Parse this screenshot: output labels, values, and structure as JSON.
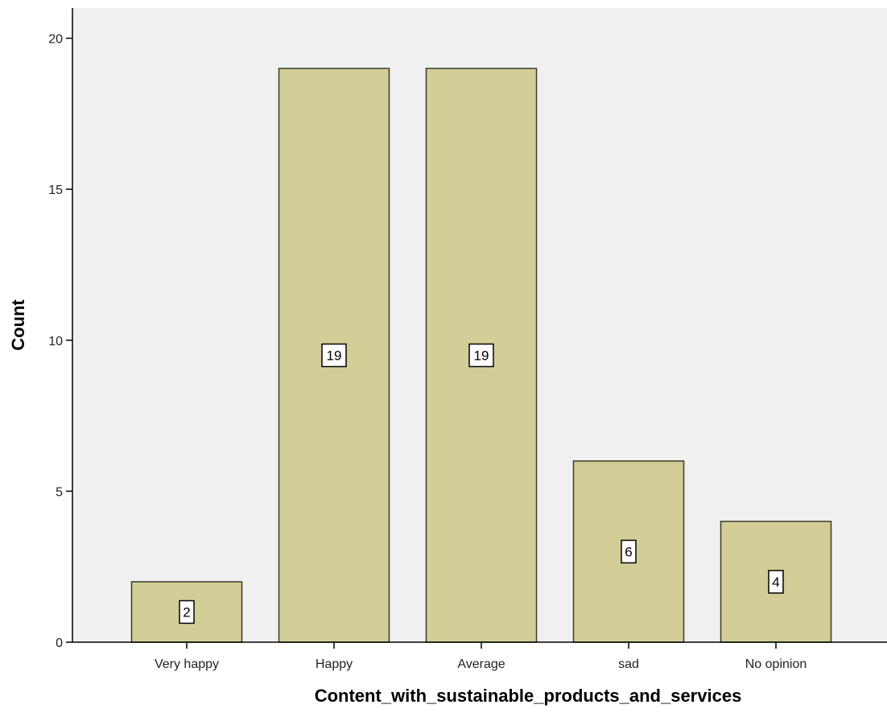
{
  "chart_data": {
    "type": "bar",
    "categories": [
      "Very happy",
      "Happy",
      "Average",
      "sad",
      "No opinion"
    ],
    "values": [
      2,
      19,
      19,
      6,
      4
    ],
    "data_labels": [
      "2",
      "19",
      "19",
      "6",
      "4"
    ],
    "title": "",
    "xlabel": "Content_with_sustainable_products_and_services",
    "ylabel": "Count",
    "ylim": [
      0,
      21
    ],
    "yticks": [
      0,
      5,
      10,
      15,
      20
    ],
    "ytick_labels": [
      "0",
      "5",
      "10",
      "15",
      "20"
    ],
    "grid": false,
    "legend": "none",
    "colors": {
      "plot_background": "#f0f0f0",
      "bar_fill": "#d3ce97",
      "bar_stroke": "#3a3a2a",
      "axis": "#000000"
    }
  }
}
